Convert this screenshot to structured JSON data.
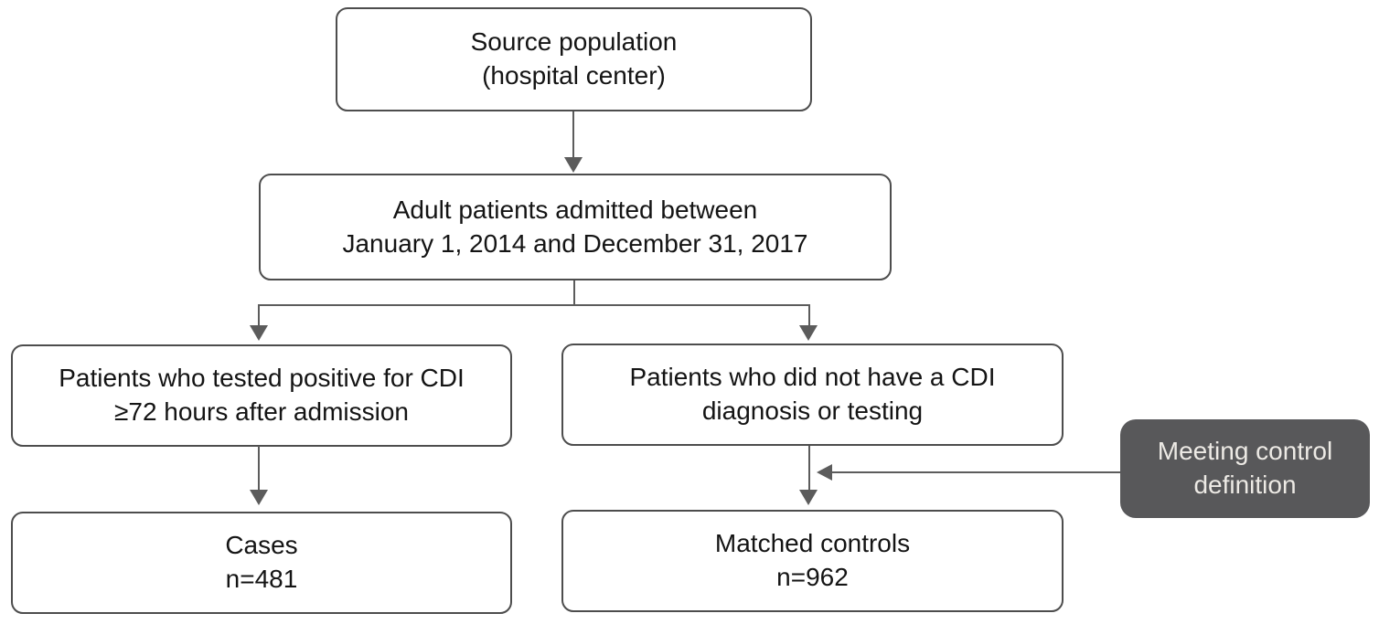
{
  "diagram": {
    "type": "flowchart",
    "nodes": {
      "source_population": {
        "label": "Source population\n(hospital center)"
      },
      "admitted_patients": {
        "label": "Adult patients admitted between\nJanuary 1, 2014 and December 31, 2017"
      },
      "cdi_positive": {
        "label": "Patients who tested positive for CDI\n≥72 hours after admission"
      },
      "no_cdi": {
        "label": "Patients who did not have a CDI\ndiagnosis or testing"
      },
      "cases": {
        "label": "Cases\nn=481",
        "n": 481
      },
      "matched_controls": {
        "label": "Matched controls\nn=962",
        "n": 962
      },
      "control_definition": {
        "label": "Meeting control\ndefinition"
      }
    },
    "colors": {
      "background": "#ffffff",
      "node_border": "#4d4d4d",
      "node_text": "#141414",
      "connector": "#5c5c5c",
      "dark_node_background": "#58585a",
      "dark_node_text": "#edeae5"
    }
  }
}
